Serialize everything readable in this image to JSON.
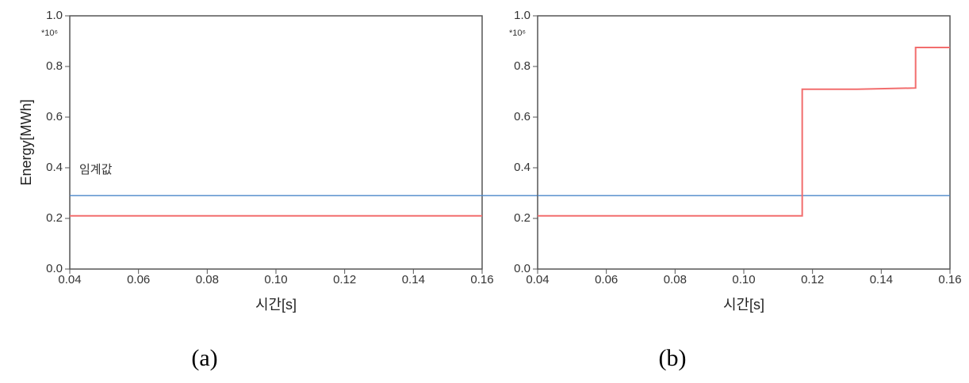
{
  "chart_data": [
    {
      "type": "line",
      "caption": "(a)",
      "ylabel": "Energy[MWh]",
      "xlabel": "시간[s]",
      "y_multiplier": "*10⁶",
      "x": [
        0.04,
        0.16
      ],
      "series": [
        {
          "color": "#f26d6d",
          "values": [
            0.21,
            0.21
          ]
        }
      ],
      "threshold": 0.29,
      "threshold_color": "#4a86c8",
      "threshold_label": "임계값",
      "xlim": [
        0.04,
        0.16
      ],
      "xticks": [
        0.04,
        0.06,
        0.08,
        {
          "value": 0.1,
          "label": "0.10"
        },
        0.12,
        0.14,
        0.16
      ],
      "ylim": [
        0,
        1
      ],
      "yticks": [
        {
          "value": 0,
          "label": "0.0"
        },
        0.2,
        0.4,
        0.6,
        0.8,
        {
          "value": 1,
          "label": "1.0"
        }
      ]
    },
    {
      "type": "line",
      "caption": "(b)",
      "xlabel": "시간[s]",
      "y_multiplier": "*10⁶",
      "x": [
        0.04,
        0.117,
        0.117,
        0.133,
        0.15,
        0.15,
        0.16
      ],
      "series": [
        {
          "color": "#f26d6d",
          "values": [
            0.21,
            0.21,
            0.71,
            0.71,
            0.715,
            0.875,
            0.875
          ]
        }
      ],
      "threshold": 0.29,
      "threshold_color": "#4a86c8",
      "xlim": [
        0.04,
        0.16
      ],
      "xticks": [
        0.04,
        0.06,
        0.08,
        {
          "value": 0.1,
          "label": "0.10"
        },
        0.12,
        0.14,
        0.16
      ],
      "ylim": [
        0,
        1
      ],
      "yticks": [
        {
          "value": 0,
          "label": "0.0"
        },
        0.2,
        0.4,
        0.6,
        0.8,
        {
          "value": 1,
          "label": "1.0"
        }
      ]
    }
  ]
}
